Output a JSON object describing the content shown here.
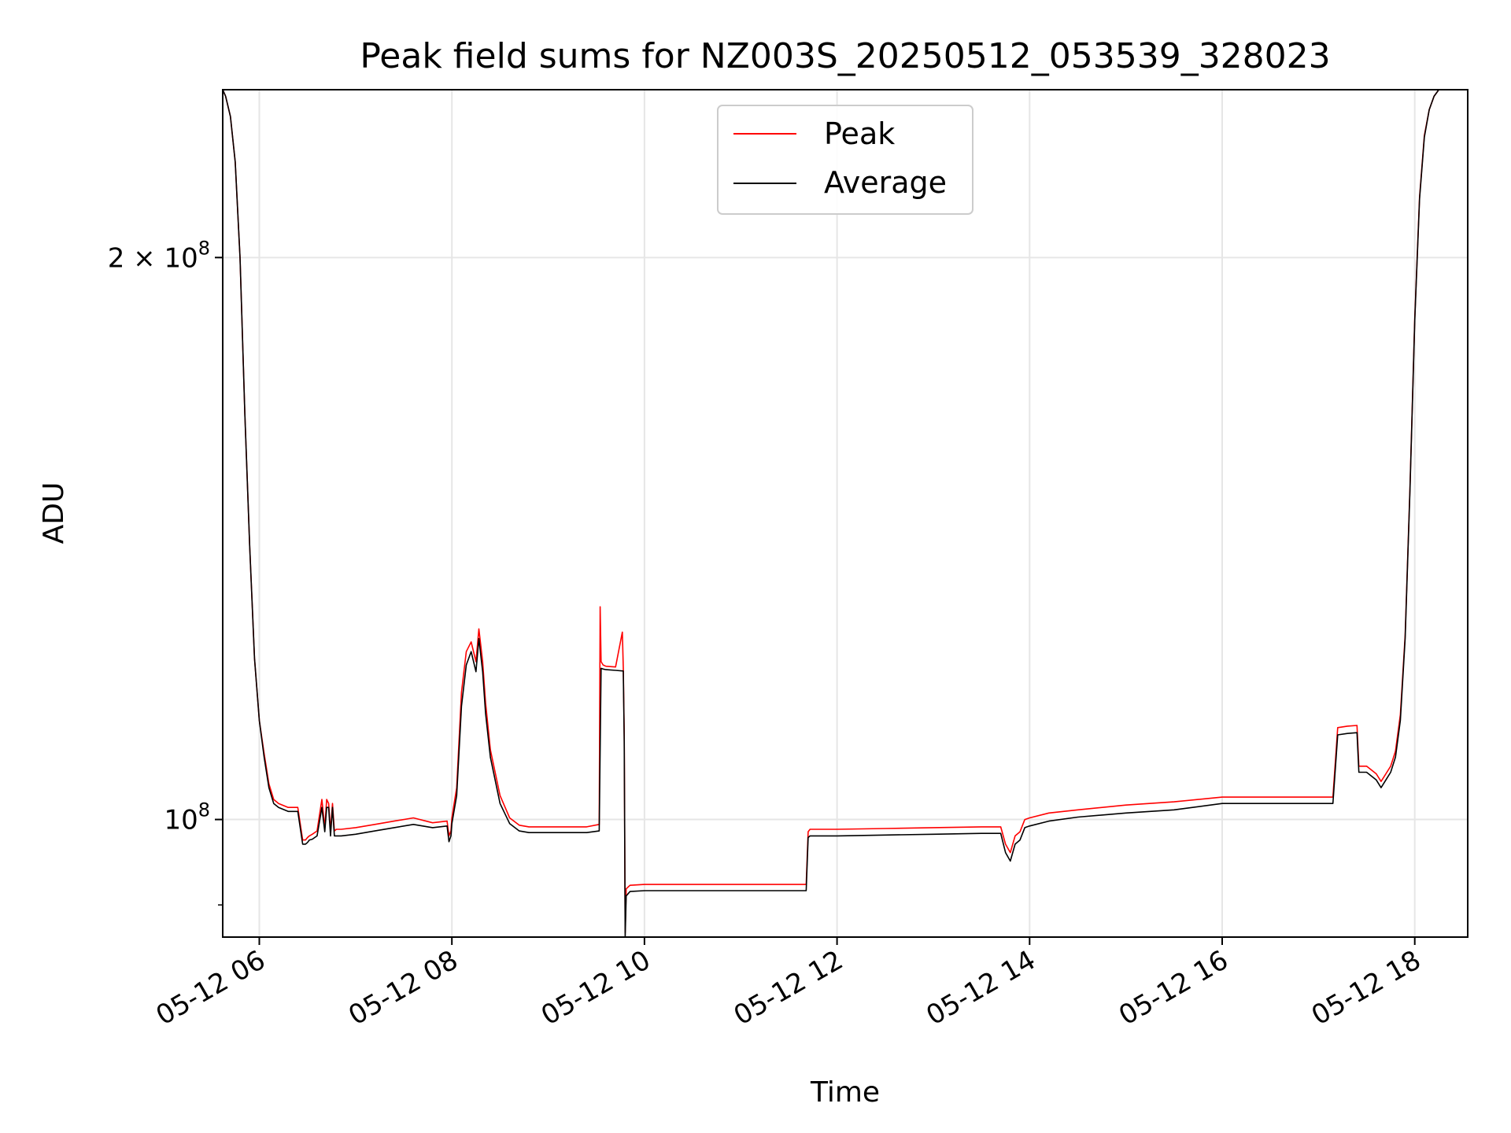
{
  "chart_data": {
    "type": "line",
    "title": "Peak field sums for NZ003S_20250512_053539_328023",
    "xlabel": "Time",
    "ylabel": "ADU",
    "x_unit": "hours (local day 2025-05-12)",
    "xlim": [
      5.62,
      18.55
    ],
    "ylim": [
      86500000,
      246000000
    ],
    "y_scale": "log",
    "x_ticks": [
      "05-12 06",
      "05-12 08",
      "05-12 10",
      "05-12 12",
      "05-12 14",
      "05-12 16",
      "05-12 18"
    ],
    "x_tick_values": [
      6,
      8,
      10,
      12,
      14,
      16,
      18
    ],
    "y_ticks": [
      {
        "value": 100000000,
        "base": "10",
        "exp": "8",
        "coef": ""
      },
      {
        "value": 200000000,
        "base": "10",
        "exp": "8",
        "coef": "2 × "
      }
    ],
    "grid": true,
    "legend": {
      "position": "upper center",
      "entries": [
        "Peak",
        "Average"
      ]
    },
    "series": [
      {
        "name": "Average",
        "color": "#000000",
        "x": [
          5.62,
          5.65,
          5.7,
          5.75,
          5.8,
          5.85,
          5.9,
          5.95,
          6.0,
          6.05,
          6.1,
          6.15,
          6.2,
          6.3,
          6.4,
          6.45,
          6.48,
          6.5,
          6.52,
          6.55,
          6.6,
          6.65,
          6.68,
          6.7,
          6.72,
          6.74,
          6.76,
          6.78,
          6.8,
          6.85,
          7.0,
          7.2,
          7.4,
          7.6,
          7.8,
          7.95,
          7.97,
          7.99,
          8.0,
          8.05,
          8.1,
          8.15,
          8.2,
          8.25,
          8.28,
          8.32,
          8.35,
          8.4,
          8.5,
          8.6,
          8.7,
          8.8,
          9.0,
          9.2,
          9.4,
          9.53,
          9.55,
          9.57,
          9.6,
          9.7,
          9.78,
          9.79,
          9.8,
          9.81,
          9.85,
          10.0,
          10.5,
          11.0,
          11.5,
          11.68,
          11.7,
          11.72,
          12.0,
          12.5,
          13.0,
          13.5,
          13.7,
          13.75,
          13.8,
          13.85,
          13.9,
          13.95,
          14.0,
          14.2,
          14.5,
          15.0,
          15.5,
          16.0,
          16.5,
          17.0,
          17.1,
          17.15,
          17.2,
          17.3,
          17.4,
          17.42,
          17.5,
          17.6,
          17.65,
          17.7,
          17.75,
          17.8,
          17.85,
          17.9,
          17.95,
          18.0,
          18.05,
          18.1,
          18.15,
          18.2,
          18.25,
          18.3,
          18.35,
          18.4,
          18.45,
          18.5,
          18.55
        ],
        "values": [
          246000000,
          244000000,
          238000000,
          225000000,
          200000000,
          165000000,
          140000000,
          122000000,
          113000000,
          108000000,
          104000000,
          102000000,
          101500000,
          101000000,
          101000000,
          97000000,
          97000000,
          97200000,
          97500000,
          97600000,
          98000000,
          101500000,
          98500000,
          101500000,
          101500000,
          98000000,
          101500000,
          98000000,
          98000000,
          98000000,
          98200000,
          98600000,
          99000000,
          99400000,
          99000000,
          99200000,
          97300000,
          98000000,
          99500000,
          103000000,
          115000000,
          121000000,
          123000000,
          120000000,
          125000000,
          120000000,
          114000000,
          108000000,
          102000000,
          99500000,
          98600000,
          98400000,
          98400000,
          98400000,
          98400000,
          98600000,
          120500000,
          120400000,
          120300000,
          120200000,
          120100000,
          110000000,
          86500000,
          91000000,
          91500000,
          91600000,
          91600000,
          91600000,
          91600000,
          91600000,
          97800000,
          98000000,
          98000000,
          98100000,
          98200000,
          98300000,
          98300000,
          96000000,
          95000000,
          97000000,
          97500000,
          99000000,
          99200000,
          99800000,
          100300000,
          100800000,
          101200000,
          102000000,
          102000000,
          102000000,
          102000000,
          102000000,
          111000000,
          111200000,
          111300000,
          106000000,
          106000000,
          105000000,
          104000000,
          105000000,
          106000000,
          108000000,
          113000000,
          125000000,
          150000000,
          185000000,
          215000000,
          232000000,
          240000000,
          244000000,
          246000000,
          246000000,
          246000000,
          246000000,
          246000000,
          246000000,
          246000000
        ]
      },
      {
        "name": "Peak",
        "color": "#ff0000",
        "x": [
          5.62,
          5.65,
          5.7,
          5.75,
          5.8,
          5.85,
          5.9,
          5.95,
          6.0,
          6.05,
          6.1,
          6.15,
          6.2,
          6.3,
          6.4,
          6.45,
          6.48,
          6.5,
          6.52,
          6.55,
          6.6,
          6.65,
          6.68,
          6.7,
          6.72,
          6.74,
          6.76,
          6.78,
          6.8,
          6.85,
          7.0,
          7.2,
          7.4,
          7.6,
          7.8,
          7.95,
          7.97,
          7.99,
          8.0,
          8.05,
          8.1,
          8.15,
          8.2,
          8.25,
          8.28,
          8.32,
          8.35,
          8.4,
          8.5,
          8.6,
          8.7,
          8.8,
          9.0,
          9.2,
          9.4,
          9.53,
          9.54,
          9.55,
          9.57,
          9.6,
          9.7,
          9.77,
          9.78,
          9.79,
          9.8,
          9.81,
          9.85,
          10.0,
          10.5,
          11.0,
          11.5,
          11.68,
          11.7,
          11.72,
          12.0,
          12.5,
          13.0,
          13.5,
          13.7,
          13.75,
          13.8,
          13.85,
          13.9,
          13.95,
          14.0,
          14.2,
          14.5,
          15.0,
          15.5,
          16.0,
          16.5,
          17.0,
          17.1,
          17.15,
          17.2,
          17.3,
          17.4,
          17.42,
          17.5,
          17.6,
          17.65,
          17.7,
          17.75,
          17.8,
          17.85,
          17.9,
          17.95,
          18.0,
          18.05,
          18.1,
          18.15,
          18.2,
          18.25,
          18.3,
          18.35,
          18.4,
          18.45,
          18.5,
          18.55
        ],
        "values": [
          246000000,
          244000000,
          238000000,
          225000000,
          200000000,
          165000000,
          140000000,
          122000000,
          113000000,
          108500000,
          104500000,
          102500000,
          102000000,
          101500000,
          101500000,
          97500000,
          97500000,
          97800000,
          98000000,
          98200000,
          98600000,
          102500000,
          99000000,
          102500000,
          102000000,
          98600000,
          102000000,
          98600000,
          98800000,
          98800000,
          99000000,
          99400000,
          99800000,
          100200000,
          99600000,
          99800000,
          98000000,
          98600000,
          100200000,
          104000000,
          117000000,
          123000000,
          124500000,
          121500000,
          126500000,
          121500000,
          115500000,
          109000000,
          103000000,
          100200000,
          99300000,
          99100000,
          99100000,
          99100000,
          99100000,
          99400000,
          130000000,
          121500000,
          121000000,
          120800000,
          120700000,
          126000000,
          120600000,
          111000000,
          87000000,
          91800000,
          92200000,
          92300000,
          92300000,
          92300000,
          92300000,
          92300000,
          98500000,
          98800000,
          98800000,
          98900000,
          99000000,
          99100000,
          99100000,
          97000000,
          96000000,
          98000000,
          98500000,
          100000000,
          100200000,
          100800000,
          101200000,
          101800000,
          102200000,
          102800000,
          102800000,
          102800000,
          102800000,
          102800000,
          112000000,
          112200000,
          112300000,
          106800000,
          106800000,
          105800000,
          104800000,
          105800000,
          106800000,
          108800000,
          113800000,
          125500000,
          150500000,
          185500000,
          215500000,
          232500000,
          240000000,
          244000000,
          246000000,
          246000000,
          246000000,
          246000000,
          246000000,
          246000000,
          246000000
        ]
      }
    ]
  }
}
